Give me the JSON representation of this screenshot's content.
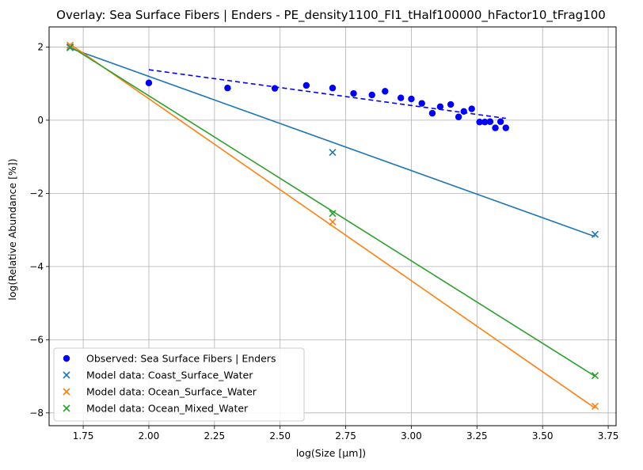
{
  "chart_data": {
    "type": "scatter",
    "title": "Overlay: Sea Surface Fibers | Enders - PE_density1100_FI1_tHalf100000_hFactor10_tFrag100",
    "xlabel": "log(Size [µm])",
    "ylabel": "log(Relative Abundance [%])",
    "xlim": [
      1.62,
      3.78
    ],
    "ylim": [
      -8.35,
      2.55
    ],
    "xticks": [
      1.75,
      2.0,
      2.25,
      2.5,
      2.75,
      3.0,
      3.25,
      3.5,
      3.75
    ],
    "xtick_labels": [
      "1.75",
      "2.00",
      "2.25",
      "2.50",
      "2.75",
      "3.00",
      "3.25",
      "3.50",
      "3.75"
    ],
    "yticks": [
      2,
      0,
      -2,
      -4,
      -6,
      -8
    ],
    "ytick_labels": [
      "2",
      "0",
      "−2",
      "−4",
      "−6",
      "−8"
    ],
    "grid": true,
    "legend_position": "lower-left",
    "series": [
      {
        "name": "Observed: Sea Surface Fibers | Enders",
        "kind": "points",
        "marker": "circle",
        "color": "#0000ff",
        "x": [
          2.0,
          2.3,
          2.48,
          2.6,
          2.7,
          2.78,
          2.85,
          2.9,
          2.96,
          3.0,
          3.04,
          3.08,
          3.11,
          3.15,
          3.18,
          3.2,
          3.23,
          3.26,
          3.28,
          3.3,
          3.32,
          3.34,
          3.36
        ],
        "y": [
          1.02,
          0.88,
          0.87,
          0.95,
          0.88,
          0.73,
          0.69,
          0.79,
          0.61,
          0.58,
          0.46,
          0.19,
          0.37,
          0.43,
          0.09,
          0.24,
          0.31,
          -0.05,
          -0.05,
          -0.04,
          -0.21,
          -0.04,
          -0.21
        ]
      },
      {
        "name": "Model data: Coast_Surface_Water",
        "kind": "points",
        "marker": "x",
        "color": "#1f77b4",
        "x": [
          1.7,
          2.7,
          3.7
        ],
        "y": [
          2.0,
          -0.88,
          -3.12
        ]
      },
      {
        "name": "Model data: Ocean_Surface_Water",
        "kind": "points",
        "marker": "x",
        "color": "#ff7f0e",
        "x": [
          1.7,
          2.7,
          3.7
        ],
        "y": [
          2.05,
          -2.78,
          -7.82
        ]
      },
      {
        "name": "Model data: Ocean_Mixed_Water",
        "kind": "points",
        "marker": "x",
        "color": "#2ca02c",
        "x": [
          1.7,
          2.7,
          3.7
        ],
        "y": [
          1.98,
          -2.55,
          -6.98
        ]
      }
    ],
    "fit_lines": [
      {
        "series": "Observed: Sea Surface Fibers | Enders",
        "color": "#0000ff",
        "style": "dashed",
        "x": [
          2.0,
          3.36
        ],
        "y": [
          1.38,
          0.05
        ]
      },
      {
        "series": "Model data: Coast_Surface_Water",
        "color": "#1f77b4",
        "style": "solid",
        "x": [
          1.7,
          3.7
        ],
        "y": [
          1.97,
          -3.18
        ]
      },
      {
        "series": "Model data: Ocean_Surface_Water",
        "color": "#ff7f0e",
        "style": "solid",
        "x": [
          1.7,
          3.7
        ],
        "y": [
          2.08,
          -7.87
        ]
      },
      {
        "series": "Model data: Ocean_Mixed_Water",
        "color": "#2ca02c",
        "style": "solid",
        "x": [
          1.7,
          3.7
        ],
        "y": [
          2.02,
          -7.0
        ]
      }
    ]
  }
}
